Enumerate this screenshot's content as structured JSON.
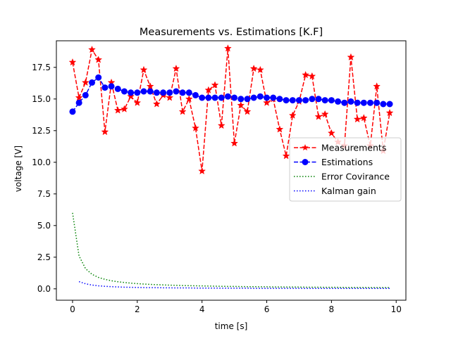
{
  "chart_data": {
    "type": "line",
    "title": "Measurements vs. Estimations [K.F]",
    "xlabel": "time [s]",
    "ylabel": "voltage [V]",
    "xlim": [
      -0.5,
      10.3
    ],
    "ylim": [
      -0.9,
      19.6
    ],
    "grid": false,
    "legend_position": "center-right",
    "xticks": [
      0,
      2,
      4,
      6,
      8,
      10
    ],
    "xtick_labels": [
      "0",
      "2",
      "4",
      "6",
      "8",
      "10"
    ],
    "yticks": [
      0.0,
      2.5,
      5.0,
      7.5,
      10.0,
      12.5,
      15.0,
      17.5
    ],
    "ytick_labels": [
      "0.0",
      "2.5",
      "5.0",
      "7.5",
      "10.0",
      "12.5",
      "15.0",
      "17.5"
    ],
    "x": [
      0.0,
      0.2,
      0.4,
      0.6,
      0.8,
      1.0,
      1.2,
      1.4,
      1.6,
      1.8,
      2.0,
      2.2,
      2.4,
      2.6,
      2.8,
      3.0,
      3.2,
      3.4,
      3.6,
      3.8,
      4.0,
      4.2,
      4.4,
      4.6,
      4.8,
      5.0,
      5.2,
      5.4,
      5.6,
      5.8,
      6.0,
      6.2,
      6.4,
      6.6,
      6.8,
      7.0,
      7.2,
      7.4,
      7.6,
      7.8,
      8.0,
      8.2,
      8.4,
      8.6,
      8.8,
      9.0,
      9.2,
      9.4,
      9.6,
      9.8
    ],
    "series": [
      {
        "name": "Measurements",
        "color": "#ff0000",
        "linestyle": "dashed",
        "marker": "star",
        "values": [
          17.9,
          15.1,
          16.3,
          18.9,
          18.1,
          12.4,
          16.3,
          14.1,
          14.2,
          15.2,
          14.7,
          17.3,
          16.0,
          14.6,
          15.3,
          15.1,
          17.4,
          14.0,
          15.0,
          12.7,
          9.3,
          15.7,
          16.1,
          12.9,
          19.0,
          11.5,
          14.5,
          14.0,
          17.4,
          17.3,
          14.7,
          15.0,
          12.6,
          10.5,
          13.7,
          14.8,
          16.9,
          16.8,
          13.6,
          13.8,
          12.3,
          11.6,
          11.3,
          18.3,
          13.4,
          13.5,
          11.3,
          16.0,
          10.9,
          13.9
        ]
      },
      {
        "name": "Estimations",
        "color": "#0000ff",
        "linestyle": "dashed",
        "marker": "circle",
        "values": [
          14.0,
          14.7,
          15.3,
          16.3,
          16.7,
          15.9,
          16.0,
          15.8,
          15.6,
          15.5,
          15.5,
          15.6,
          15.6,
          15.5,
          15.5,
          15.5,
          15.6,
          15.5,
          15.5,
          15.3,
          15.1,
          15.1,
          15.1,
          15.1,
          15.2,
          15.1,
          15.0,
          15.0,
          15.1,
          15.2,
          15.1,
          15.1,
          15.0,
          14.9,
          14.9,
          14.9,
          14.9,
          15.0,
          15.0,
          14.9,
          14.9,
          14.8,
          14.7,
          14.8,
          14.7,
          14.7,
          14.7,
          14.7,
          14.6,
          14.6
        ]
      },
      {
        "name": "Error Covirance",
        "color": "#008000",
        "linestyle": "dotted",
        "marker": "none",
        "values": [
          6.0,
          2.6,
          1.6,
          1.15,
          0.9,
          0.75,
          0.64,
          0.56,
          0.5,
          0.45,
          0.41,
          0.38,
          0.35,
          0.33,
          0.31,
          0.29,
          0.28,
          0.26,
          0.25,
          0.24,
          0.23,
          0.22,
          0.21,
          0.2,
          0.19,
          0.19,
          0.18,
          0.17,
          0.17,
          0.16,
          0.16,
          0.15,
          0.15,
          0.14,
          0.14,
          0.14,
          0.13,
          0.13,
          0.13,
          0.12,
          0.12,
          0.12,
          0.11,
          0.11,
          0.11,
          0.11,
          0.1,
          0.1,
          0.1,
          0.1
        ]
      },
      {
        "name": "Kalman gain",
        "color": "#0000ff",
        "linestyle": "dotted",
        "marker": "none",
        "values": [
          null,
          0.57,
          0.4,
          0.3,
          0.24,
          0.2,
          0.17,
          0.15,
          0.13,
          0.12,
          0.11,
          0.1,
          0.09,
          0.09,
          0.08,
          0.08,
          0.07,
          0.07,
          0.07,
          0.06,
          0.06,
          0.06,
          0.06,
          0.05,
          0.05,
          0.05,
          0.05,
          0.05,
          0.04,
          0.04,
          0.04,
          0.04,
          0.04,
          0.04,
          0.04,
          0.04,
          0.03,
          0.03,
          0.03,
          0.03,
          0.03,
          0.03,
          0.03,
          0.03,
          0.03,
          0.03,
          0.03,
          0.03,
          0.03,
          0.03
        ]
      }
    ]
  }
}
